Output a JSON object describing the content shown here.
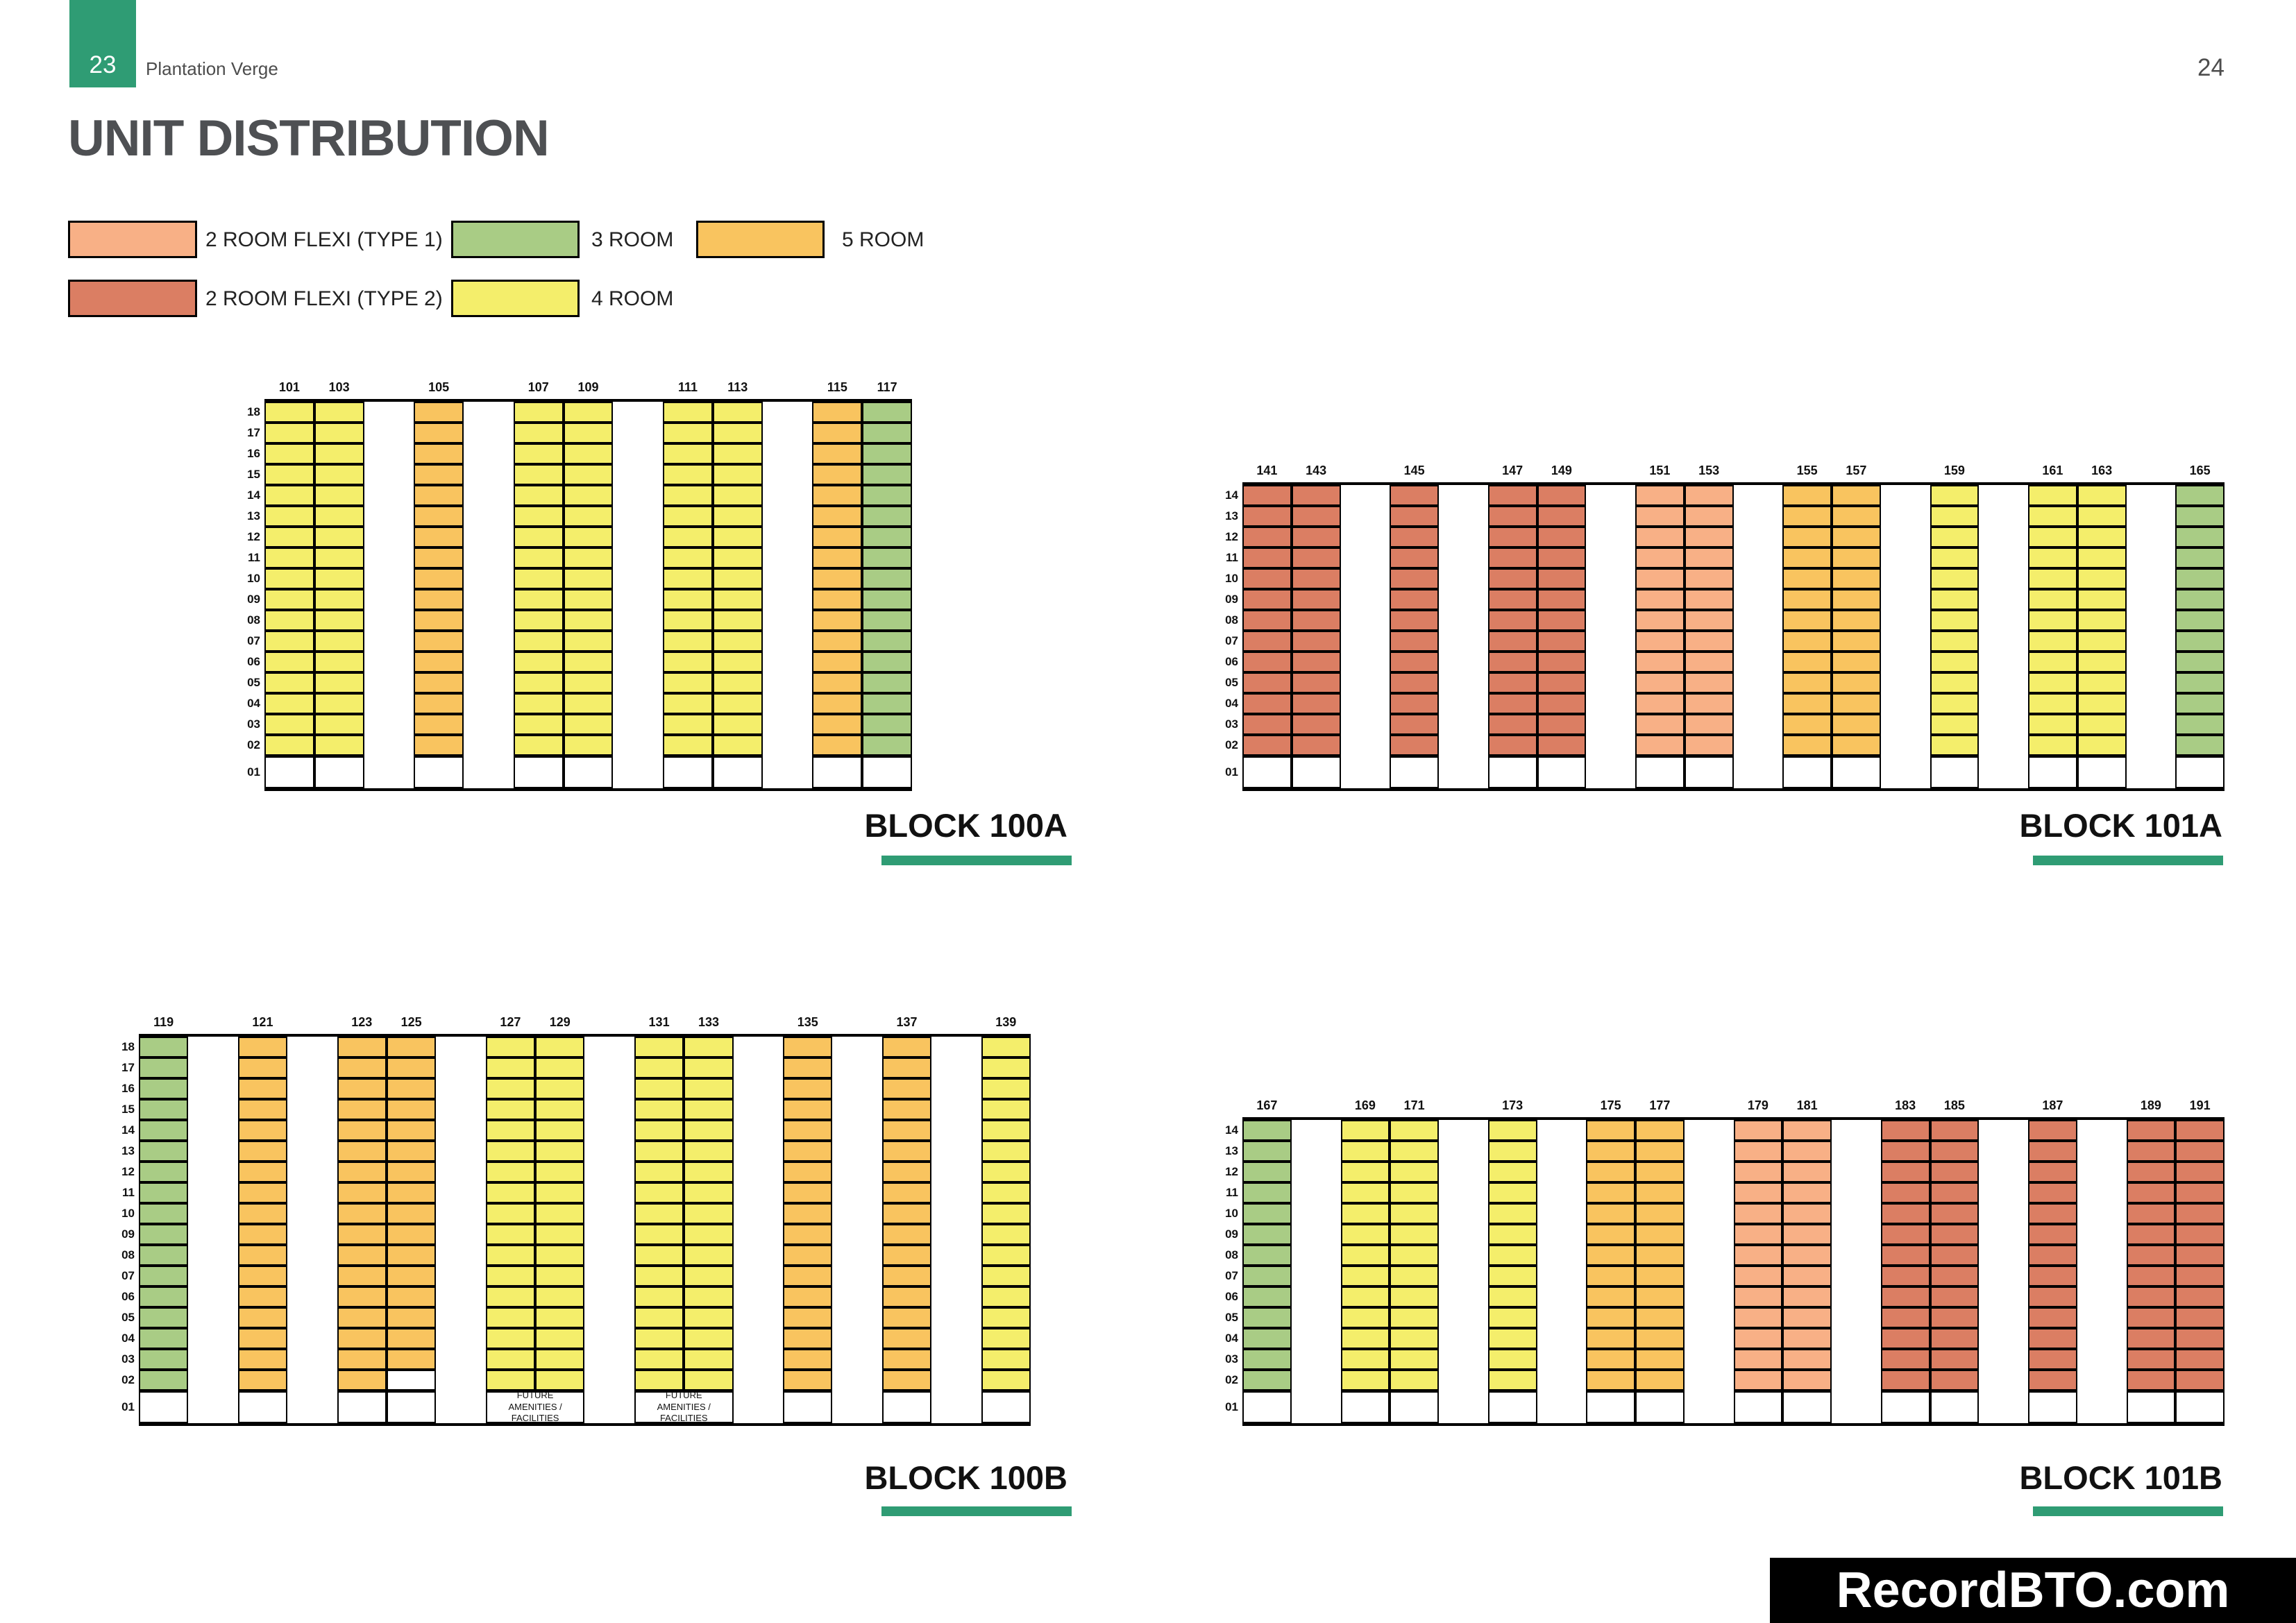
{
  "page": {
    "page_number_left": "23",
    "page_number_right": "24",
    "project_name": "Plantation Verge",
    "title": "UNIT DISTRIBUTION",
    "watermark": "RecordBTO.com",
    "accent_color": "#2F9C74"
  },
  "legend": {
    "items": [
      {
        "key": "2rf1",
        "label": "2 ROOM FLEXI (TYPE 1)",
        "color": "#F8B086"
      },
      {
        "key": "2rf2",
        "label": "2 ROOM FLEXI (TYPE 2)",
        "color": "#DB7E63"
      },
      {
        "key": "3r",
        "label": "3 ROOM",
        "color": "#A9CC85"
      },
      {
        "key": "4r",
        "label": "4 ROOM",
        "color": "#F4EE6B"
      },
      {
        "key": "5r",
        "label": "5 ROOM",
        "color": "#F9C45F"
      }
    ]
  },
  "blocks": [
    {
      "name": "BLOCK 100A",
      "floors": [
        "18",
        "17",
        "16",
        "15",
        "14",
        "13",
        "12",
        "11",
        "10",
        "09",
        "08",
        "07",
        "06",
        "05",
        "04",
        "03",
        "02",
        "01"
      ],
      "columns": [
        {
          "unit": "101",
          "type": "4r"
        },
        {
          "unit": "103",
          "type": "4r"
        },
        {
          "gap": true
        },
        {
          "unit": "105",
          "type": "5r"
        },
        {
          "gap": true
        },
        {
          "unit": "107",
          "type": "4r"
        },
        {
          "unit": "109",
          "type": "4r"
        },
        {
          "gap": true
        },
        {
          "unit": "111",
          "type": "4r"
        },
        {
          "unit": "113",
          "type": "4r"
        },
        {
          "gap": true
        },
        {
          "unit": "115",
          "type": "5r"
        },
        {
          "unit": "117",
          "type": "3r"
        }
      ],
      "amenities": []
    },
    {
      "name": "BLOCK 101A",
      "floors": [
        "14",
        "13",
        "12",
        "11",
        "10",
        "09",
        "08",
        "07",
        "06",
        "05",
        "04",
        "03",
        "02",
        "01"
      ],
      "columns": [
        {
          "unit": "141",
          "type": "2rf2"
        },
        {
          "unit": "143",
          "type": "2rf2"
        },
        {
          "gap": true
        },
        {
          "unit": "145",
          "type": "2rf2"
        },
        {
          "gap": true
        },
        {
          "unit": "147",
          "type": "2rf2"
        },
        {
          "unit": "149",
          "type": "2rf2"
        },
        {
          "gap": true
        },
        {
          "unit": "151",
          "type": "2rf1"
        },
        {
          "unit": "153",
          "type": "2rf1"
        },
        {
          "gap": true
        },
        {
          "unit": "155",
          "type": "5r"
        },
        {
          "unit": "157",
          "type": "5r"
        },
        {
          "gap": true
        },
        {
          "unit": "159",
          "type": "4r"
        },
        {
          "gap": true
        },
        {
          "unit": "161",
          "type": "4r"
        },
        {
          "unit": "163",
          "type": "4r"
        },
        {
          "gap": true
        },
        {
          "unit": "165",
          "type": "3r"
        }
      ],
      "amenities": []
    },
    {
      "name": "BLOCK 100B",
      "floors": [
        "18",
        "17",
        "16",
        "15",
        "14",
        "13",
        "12",
        "11",
        "10",
        "09",
        "08",
        "07",
        "06",
        "05",
        "04",
        "03",
        "02",
        "01"
      ],
      "columns": [
        {
          "unit": "119",
          "type": "3r"
        },
        {
          "gap": true
        },
        {
          "unit": "121",
          "type": "5r"
        },
        {
          "gap": true
        },
        {
          "unit": "123",
          "type": "5r"
        },
        {
          "unit": "125",
          "type": "5r",
          "empty_floors": [
            "02"
          ]
        },
        {
          "gap": true
        },
        {
          "unit": "127",
          "type": "4r"
        },
        {
          "unit": "129",
          "type": "4r"
        },
        {
          "gap": true
        },
        {
          "unit": "131",
          "type": "4r"
        },
        {
          "unit": "133",
          "type": "4r"
        },
        {
          "gap": true
        },
        {
          "unit": "135",
          "type": "5r"
        },
        {
          "gap": true
        },
        {
          "unit": "137",
          "type": "5r"
        },
        {
          "gap": true
        },
        {
          "unit": "139",
          "type": "4r"
        }
      ],
      "amenities": [
        {
          "col": 7,
          "span": 2,
          "label": "FUTURE AMENITIES / FACILITIES"
        },
        {
          "col": 10,
          "span": 2,
          "label": "FUTURE AMENITIES / FACILITIES"
        }
      ]
    },
    {
      "name": "BLOCK 101B",
      "floors": [
        "14",
        "13",
        "12",
        "11",
        "10",
        "09",
        "08",
        "07",
        "06",
        "05",
        "04",
        "03",
        "02",
        "01"
      ],
      "columns": [
        {
          "unit": "167",
          "type": "3r"
        },
        {
          "gap": true
        },
        {
          "unit": "169",
          "type": "4r"
        },
        {
          "unit": "171",
          "type": "4r"
        },
        {
          "gap": true
        },
        {
          "unit": "173",
          "type": "4r"
        },
        {
          "gap": true
        },
        {
          "unit": "175",
          "type": "5r"
        },
        {
          "unit": "177",
          "type": "5r"
        },
        {
          "gap": true
        },
        {
          "unit": "179",
          "type": "2rf1"
        },
        {
          "unit": "181",
          "type": "2rf1"
        },
        {
          "gap": true
        },
        {
          "unit": "183",
          "type": "2rf2"
        },
        {
          "unit": "185",
          "type": "2rf2"
        },
        {
          "gap": true
        },
        {
          "unit": "187",
          "type": "2rf2"
        },
        {
          "gap": true
        },
        {
          "unit": "189",
          "type": "2rf2"
        },
        {
          "unit": "191",
          "type": "2rf2"
        }
      ],
      "amenities": []
    }
  ]
}
